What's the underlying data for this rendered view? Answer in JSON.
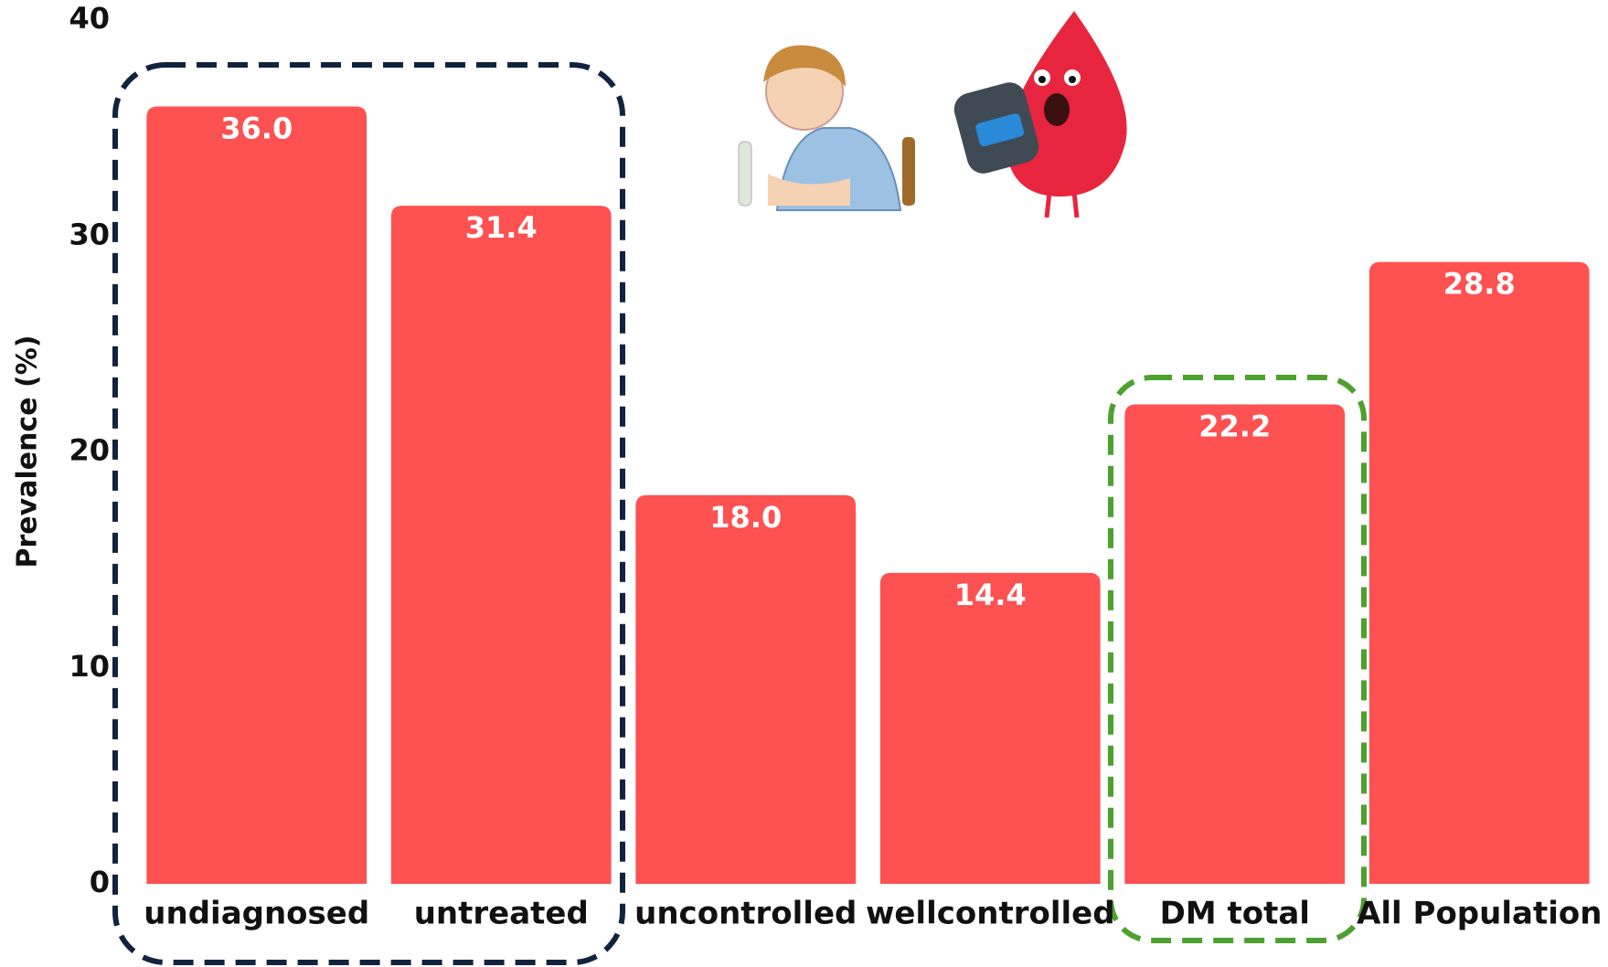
{
  "chart_data": {
    "type": "bar",
    "y_label": "Prevalence (%)",
    "categories": [
      "undiagnosed",
      "untreated",
      "uncontrolled",
      "wellcontrolled",
      "DM total",
      "All Population"
    ],
    "values": [
      36.0,
      31.4,
      18.0,
      14.4,
      22.2,
      28.8
    ],
    "value_labels": [
      "36.0",
      "31.4",
      "18.0",
      "14.4",
      "22.2",
      "28.8"
    ],
    "color": "#fd5152",
    "ylim": [
      0,
      40
    ],
    "yticks": [
      0,
      10,
      20,
      30,
      40
    ],
    "grid": false
  }
}
